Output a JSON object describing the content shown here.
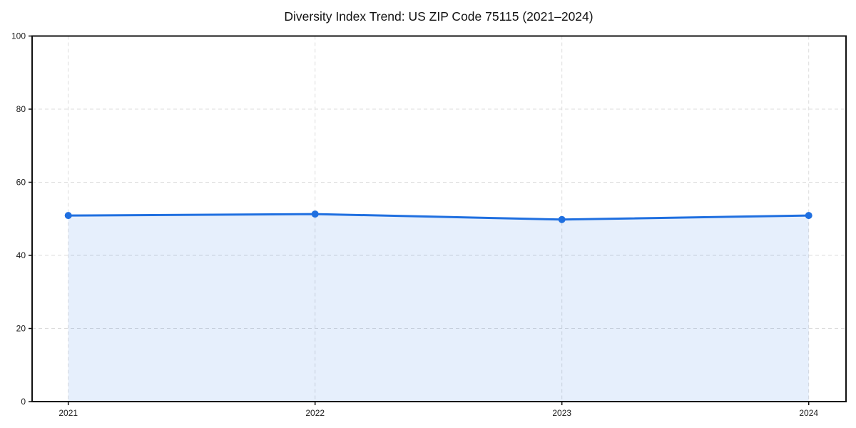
{
  "chart_data": {
    "type": "area",
    "title": "Diversity Index Trend: US ZIP Code 75115 (2021–2024)",
    "categories": [
      "2021",
      "2022",
      "2023",
      "2024"
    ],
    "series": [
      {
        "name": "Diversity Index",
        "values": [
          50.9,
          51.3,
          49.8,
          50.9
        ]
      }
    ],
    "xlabel": "",
    "ylabel": "",
    "ylim": [
      0,
      100
    ],
    "yticks": [
      0,
      20,
      40,
      60,
      80,
      100
    ],
    "grid": "dashed-both-axes",
    "legend": "none",
    "colors": {
      "line": "#1f6fe0",
      "marker": "#1f6fe0",
      "fill": "rgba(31,111,224,0.11)",
      "grid": "#dcdcdc",
      "spine": "#111111",
      "text": "#1a1a1a",
      "background": "#ffffff"
    }
  }
}
